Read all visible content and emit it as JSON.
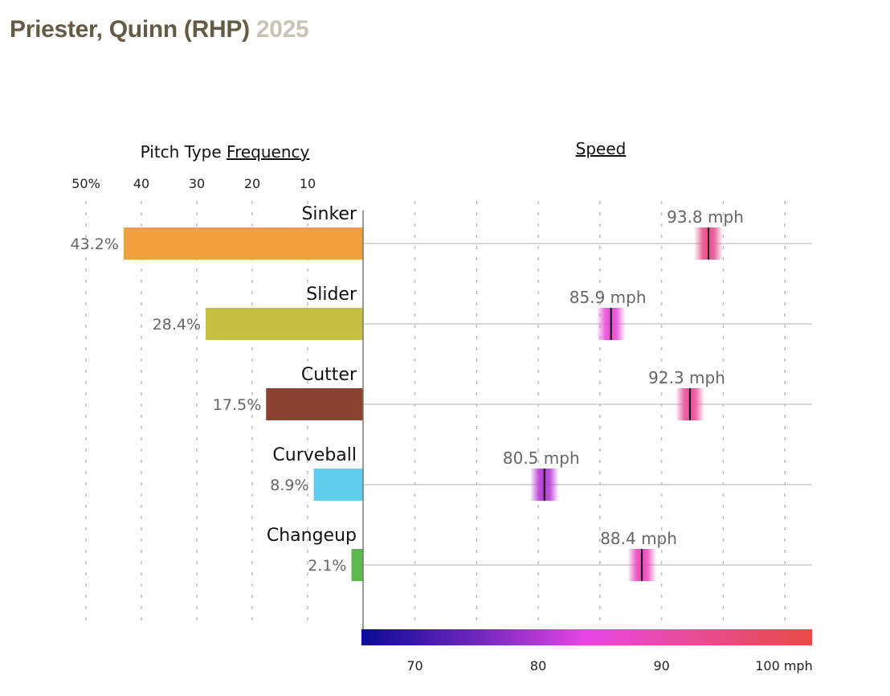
{
  "header": {
    "player_name": "Priester, Quinn (RHP)",
    "season": "2025"
  },
  "chart_data": {
    "type": "bar",
    "title": "Priester, Quinn (RHP) 2025",
    "panels": {
      "frequency": {
        "title_prefix": "Pitch Type",
        "title_link": "Frequency",
        "xlim": [
          0,
          50
        ],
        "ticks": [
          10,
          20,
          30,
          40,
          50
        ],
        "tick_labels": [
          "10",
          "20",
          "30",
          "40",
          "50%"
        ],
        "direction": "right-to-left",
        "grid": "dotted vertical"
      },
      "speed": {
        "title_link": "Speed",
        "xlim": [
          65.8,
          102.2
        ],
        "gridlines": [
          70,
          75,
          80,
          85,
          90,
          95,
          100
        ],
        "ticks": [
          70,
          80,
          90,
          100
        ],
        "tick_labels": [
          "70",
          "80",
          "90",
          "100 mph"
        ],
        "colorbar": {
          "range": [
            65.8,
            102.2
          ],
          "stops": [
            {
              "value": 65.8,
              "color": "#0a0a96"
            },
            {
              "value": 76,
              "color": "#7a2ac0"
            },
            {
              "value": 84,
              "color": "#e845e6"
            },
            {
              "value": 92,
              "color": "#e84c9a"
            },
            {
              "value": 102.2,
              "color": "#e84c44"
            }
          ]
        }
      }
    },
    "categories": [
      "Sinker",
      "Slider",
      "Cutter",
      "Curveball",
      "Changeup"
    ],
    "series": [
      {
        "name": "Frequency",
        "unit": "%",
        "values": [
          43.2,
          28.4,
          17.5,
          8.9,
          2.1
        ],
        "labels": [
          "43.2%",
          "28.4%",
          "17.5%",
          "8.9%",
          "2.1%"
        ],
        "colors": [
          "#f0a13b",
          "#c3bf40",
          "#8b4431",
          "#5ecfea",
          "#5bb94e"
        ]
      },
      {
        "name": "Speed",
        "unit": "mph",
        "values": [
          93.8,
          85.9,
          92.3,
          80.5,
          88.4
        ],
        "labels": [
          "93.8 mph",
          "85.9 mph",
          "92.3 mph",
          "80.5 mph",
          "88.4 mph"
        ]
      }
    ]
  }
}
